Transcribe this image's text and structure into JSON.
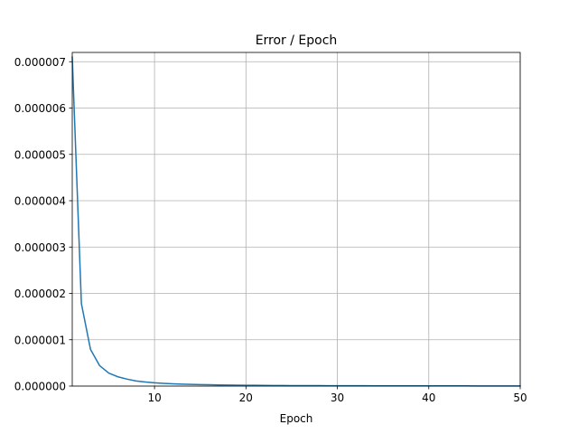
{
  "chart_data": {
    "type": "line",
    "title": "Error / Epoch",
    "xlabel": "Epoch",
    "ylabel": "",
    "xlim": [
      1,
      50
    ],
    "ylim": [
      0,
      7.2e-06
    ],
    "grid": true,
    "x_ticks": [
      10,
      20,
      30,
      40,
      50
    ],
    "x_tick_labels": [
      "10",
      "20",
      "30",
      "40",
      "50"
    ],
    "y_ticks": [
      0,
      1e-06,
      2e-06,
      3e-06,
      4e-06,
      5e-06,
      6e-06,
      7e-06
    ],
    "y_tick_labels": [
      "0.000000",
      "0.000001",
      "0.000002",
      "0.000003",
      "0.000004",
      "0.000005",
      "0.000006",
      "0.000007"
    ],
    "series": [
      {
        "color": "#1f77b4",
        "x": [
          1,
          2,
          3,
          4,
          5,
          6,
          7,
          8,
          9,
          10,
          11,
          12,
          13,
          14,
          15,
          16,
          17,
          18,
          19,
          20,
          21,
          22,
          23,
          24,
          25,
          26,
          27,
          28,
          29,
          30,
          31,
          32,
          33,
          34,
          35,
          36,
          37,
          38,
          39,
          40,
          41,
          42,
          43,
          44,
          45,
          46,
          47,
          48,
          49,
          50
        ],
        "y": [
          7.1e-06,
          1.78e-06,
          7.9e-07,
          4.4e-07,
          2.8e-07,
          2e-07,
          1.5e-07,
          1.1e-07,
          8.8e-08,
          7.1e-08,
          5.9e-08,
          4.9e-08,
          4.2e-08,
          3.6e-08,
          3.2e-08,
          2.8e-08,
          2.5e-08,
          2.2e-08,
          2e-08,
          1.8e-08,
          1.6e-08,
          1.5e-08,
          1.3e-08,
          1.2e-08,
          1.1e-08,
          1e-08,
          9.7e-09,
          9e-09,
          8.4e-09,
          7.9e-09,
          7.4e-09,
          6.9e-09,
          6.5e-09,
          6.1e-09,
          5.8e-09,
          5.5e-09,
          5.2e-09,
          4.9e-09,
          4.7e-09,
          4.4e-09,
          4.2e-09,
          4e-09,
          3.8e-09,
          3.7e-09,
          3.5e-09,
          3.4e-09,
          3.2e-09,
          3.1e-09,
          3e-09,
          2.8e-09
        ]
      }
    ]
  }
}
